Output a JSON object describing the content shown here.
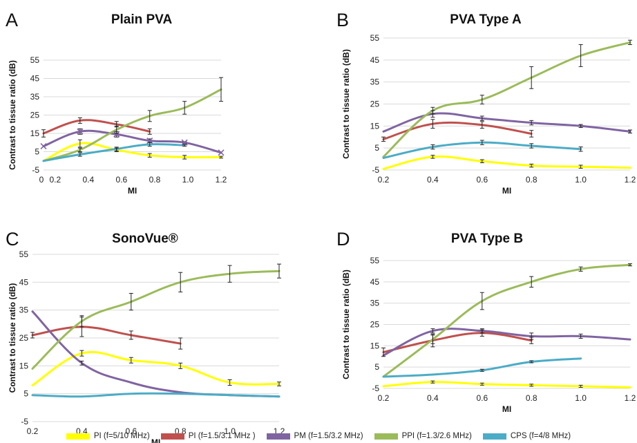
{
  "chart_data": [
    {
      "type": "line",
      "panel_label": "A",
      "title": "Plain PVA",
      "xlabel": "MI",
      "ylabel": "Contrast to tissue ratio (dB)",
      "xlim": [
        0.13,
        1.2
      ],
      "ylim": [
        -5,
        55
      ],
      "x_tick_labels": [
        "0",
        "0.2",
        "0.4",
        "0.6",
        "0.8",
        "1.0",
        "1.2"
      ],
      "y_tick_labels": [
        "-5",
        "5",
        "15",
        "25",
        "35",
        "45",
        "55"
      ],
      "grid": true,
      "series": [
        {
          "name": "PI (f=5/10 MHz)",
          "color": "#ffff00",
          "x": [
            0.13,
            0.35,
            0.57,
            0.77,
            0.98,
            1.2
          ],
          "y": [
            0,
            9.5,
            6,
            3,
            2,
            2
          ],
          "err": [
            0,
            2,
            1,
            1,
            1,
            0.5
          ]
        },
        {
          "name": "PI (f=1.5/3.1 MHz )",
          "color": "#c0504d",
          "x": [
            0.13,
            0.35,
            0.57,
            0.77
          ],
          "y": [
            15,
            22,
            20,
            16
          ],
          "err": [
            2,
            1.5,
            1.5,
            1.5
          ]
        },
        {
          "name": "PM (f=1.5/3.2 MHz)",
          "color": "#8064a2",
          "x": [
            0.13,
            0.35,
            0.57,
            0.77,
            0.98,
            1.2
          ],
          "y": [
            8,
            16,
            14.5,
            11,
            10,
            4.5
          ],
          "err": [
            0,
            1.5,
            1.5,
            1,
            0.5,
            0
          ],
          "marker": "x"
        },
        {
          "name": "PPI (f=1.3/2.6 MHz)",
          "color": "#9bbb59",
          "x": [
            0.13,
            0.35,
            0.57,
            0.77,
            0.98,
            1.2
          ],
          "y": [
            0,
            6,
            17,
            24.5,
            29,
            39
          ],
          "err": [
            0,
            1,
            2,
            3,
            3.5,
            6.5
          ]
        },
        {
          "name": "CPS (f=4/8 MHz)",
          "color": "#4bacc6",
          "x": [
            0.13,
            0.35,
            0.57,
            0.77,
            0.98
          ],
          "y": [
            0,
            3.5,
            6.5,
            9,
            8.5
          ],
          "err": [
            0,
            1,
            1,
            1,
            0.5
          ]
        }
      ]
    },
    {
      "type": "line",
      "panel_label": "B",
      "title": "PVA Type A",
      "xlabel": "MI",
      "ylabel": "Contrast to tissue ratio (dB)",
      "xlim": [
        0.2,
        1.2
      ],
      "ylim": [
        -5,
        55
      ],
      "x_tick_labels": [
        "0.2",
        "0.4",
        "0.6",
        "0.8",
        "1.0",
        "1.2"
      ],
      "y_tick_labels": [
        "-5",
        "5",
        "15",
        "25",
        "35",
        "45",
        "55"
      ],
      "grid": true,
      "series": [
        {
          "name": "PI (f=5/10 MHz)",
          "color": "#ffff00",
          "x": [
            0.2,
            0.4,
            0.6,
            0.8,
            1.0,
            1.2
          ],
          "y": [
            -4.5,
            1,
            -1,
            -3,
            -3.5,
            -4
          ],
          "err": [
            0,
            0.7,
            0.7,
            0.7,
            0.7,
            0
          ]
        },
        {
          "name": "PI (f=1.5/3.1 MHz )",
          "color": "#c0504d",
          "x": [
            0.2,
            0.4,
            0.6,
            0.8
          ],
          "y": [
            9,
            16,
            15.5,
            11.5
          ],
          "err": [
            1,
            2,
            1.5,
            1.5
          ]
        },
        {
          "name": "PM (f=1.5/3.2 MHz)",
          "color": "#8064a2",
          "x": [
            0.2,
            0.4,
            0.6,
            0.8,
            1.0,
            1.2
          ],
          "y": [
            12.5,
            20.5,
            18.5,
            16.5,
            15,
            12.5
          ],
          "err": [
            0,
            1.5,
            1,
            1,
            0.7,
            0.7
          ]
        },
        {
          "name": "PPI (f=1.3/2.6 MHz)",
          "color": "#9bbb59",
          "x": [
            0.2,
            0.4,
            0.6,
            0.8,
            1.0,
            1.2
          ],
          "y": [
            1,
            22,
            27,
            37,
            47,
            53
          ],
          "err": [
            0,
            1.5,
            2,
            5,
            5,
            1
          ]
        },
        {
          "name": "CPS (f=4/8 MHz)",
          "color": "#4bacc6",
          "x": [
            0.2,
            0.4,
            0.6,
            0.8,
            1.0
          ],
          "y": [
            0.5,
            5.5,
            7.5,
            6,
            4.5
          ],
          "err": [
            0,
            1,
            1,
            1,
            1
          ]
        }
      ]
    },
    {
      "type": "line",
      "panel_label": "C",
      "title": "SonoVue®",
      "xlabel": "MI",
      "ylabel": "Contrast to tissue ratio (dB)",
      "xlim": [
        0.2,
        1.2
      ],
      "ylim": [
        -5,
        55
      ],
      "x_tick_labels": [
        "0.2",
        "0.4",
        "0.6",
        "0.8",
        "1.0",
        "1.2"
      ],
      "y_tick_labels": [
        "-5",
        "5",
        "15",
        "25",
        "35",
        "45",
        "55"
      ],
      "grid": true,
      "series": [
        {
          "name": "PI (f=5/10 MHz)",
          "color": "#ffff00",
          "x": [
            0.2,
            0.4,
            0.6,
            0.8,
            1.0,
            1.2
          ],
          "y": [
            8,
            19.5,
            17,
            15,
            9,
            8.5
          ],
          "err": [
            0,
            1,
            1,
            1,
            1,
            0.7
          ]
        },
        {
          "name": "PI (f=1.5/3.1 MHz )",
          "color": "#c0504d",
          "x": [
            0.2,
            0.4,
            0.6,
            0.8
          ],
          "y": [
            26,
            29,
            26,
            23
          ],
          "err": [
            1,
            3.5,
            1.5,
            2
          ]
        },
        {
          "name": "PM (f=1.5/3.2 MHz)",
          "color": "#8064a2",
          "x": [
            0.2,
            0.4,
            0.6,
            0.8,
            1.0,
            1.2
          ],
          "y": [
            34.5,
            16,
            9,
            5.5,
            4.5,
            4
          ],
          "err": [
            0,
            0.7,
            0,
            0,
            0,
            0
          ]
        },
        {
          "name": "PPI (f=1.3/2.6 MHz)",
          "color": "#9bbb59",
          "x": [
            0.2,
            0.4,
            0.6,
            0.8,
            1.0,
            1.2
          ],
          "y": [
            14,
            31,
            38,
            45,
            48,
            49
          ],
          "err": [
            0,
            2,
            3,
            3.5,
            3,
            2.5
          ]
        },
        {
          "name": "CPS (f=4/8 MHz)",
          "color": "#4bacc6",
          "x": [
            0.2,
            0.4,
            0.6,
            0.8,
            1.0,
            1.2
          ],
          "y": [
            4.5,
            4,
            5,
            5,
            4.5,
            4
          ],
          "err": [
            0,
            0,
            0,
            0,
            0,
            0
          ]
        }
      ]
    },
    {
      "type": "line",
      "panel_label": "D",
      "title": "PVA Type B",
      "xlabel": "MI",
      "ylabel": "Contrast to tissue ratio (dB)",
      "xlim": [
        0.2,
        1.2
      ],
      "ylim": [
        -5,
        55
      ],
      "x_tick_labels": [
        "0.2",
        "0.4",
        "0.6",
        "0.8",
        "1.0",
        "1.2"
      ],
      "y_tick_labels": [
        "-5",
        "5",
        "15",
        "25",
        "35",
        "45",
        "55"
      ],
      "grid": true,
      "series": [
        {
          "name": "PI (f=5/10 MHz)",
          "color": "#ffff00",
          "x": [
            0.2,
            0.4,
            0.6,
            0.8,
            1.0,
            1.2
          ],
          "y": [
            -4,
            -2,
            -3,
            -3.5,
            -4,
            -4.5
          ],
          "err": [
            0,
            0.5,
            0.5,
            0.5,
            0.5,
            0
          ]
        },
        {
          "name": "PI (f=1.5/3.1 MHz )",
          "color": "#c0504d",
          "x": [
            0.2,
            0.4,
            0.6,
            0.8
          ],
          "y": [
            12,
            17.5,
            21,
            17.5
          ],
          "err": [
            2,
            3,
            1.5,
            1.5
          ]
        },
        {
          "name": "PM (f=1.5/3.2 MHz)",
          "color": "#8064a2",
          "x": [
            0.2,
            0.4,
            0.6,
            0.8,
            1.0,
            1.2
          ],
          "y": [
            10.5,
            22,
            22,
            19.5,
            19.5,
            18
          ],
          "err": [
            0,
            1,
            1,
            1.5,
            1,
            0
          ]
        },
        {
          "name": "PPI (f=1.3/2.6 MHz)",
          "color": "#9bbb59",
          "x": [
            0.2,
            0.4,
            0.6,
            0.8,
            1.0,
            1.2
          ],
          "y": [
            0.5,
            18,
            36,
            45,
            51,
            53
          ],
          "err": [
            0,
            2,
            4,
            2.5,
            1,
            0.5
          ]
        },
        {
          "name": "CPS (f=4/8 MHz)",
          "color": "#4bacc6",
          "x": [
            0.2,
            0.4,
            0.6,
            0.8,
            1.0
          ],
          "y": [
            0.5,
            1.5,
            3.5,
            7.5,
            9
          ],
          "err": [
            0,
            0,
            0.5,
            0.5,
            0
          ]
        }
      ]
    }
  ],
  "legend": [
    {
      "label": "PI (f=5/10 MHz)",
      "color": "#ffff00"
    },
    {
      "label": "PI (f=1.5/3.1 MHz )",
      "color": "#c0504d"
    },
    {
      "label": "PM (f=1.5/3.2 MHz)",
      "color": "#8064a2"
    },
    {
      "label": "PPI (f=1.3/2.6 MHz)",
      "color": "#9bbb59"
    },
    {
      "label": "CPS (f=4/8 MHz)",
      "color": "#4bacc6"
    }
  ]
}
